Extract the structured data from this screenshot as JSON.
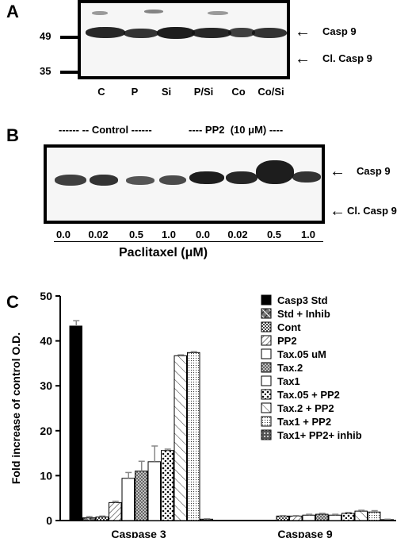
{
  "panels": {
    "a": {
      "label": "A",
      "markers": [
        "49",
        "35"
      ],
      "lanes": [
        "C",
        "P",
        "Si",
        "P/Si",
        "Co",
        "Co/Si"
      ],
      "arrows": [
        "Casp 9",
        "Cl. Casp 9"
      ]
    },
    "b": {
      "label": "B",
      "group_control": "------ -- Control ------",
      "group_pp2": "---- PP2  (10 μM) ----",
      "lanes": [
        "0.0",
        "0.02",
        "0.5",
        "1.0",
        "0.0",
        "0.02",
        "0.5",
        "1.0"
      ],
      "xlabel": "Paclitaxel (μM)",
      "arrows": [
        "Casp 9",
        "Cl. Casp 9"
      ]
    },
    "c": {
      "label": "C"
    }
  },
  "chart_data": {
    "type": "bar",
    "ylabel": "Fold increase of control O.D.",
    "ylim": [
      0,
      50
    ],
    "yticks": [
      0,
      10,
      20,
      30,
      40,
      50
    ],
    "groups": [
      "Caspase 3",
      "Caspase 9"
    ],
    "legend_position": "top-right",
    "series": [
      {
        "name": "Casp3 Std",
        "values": [
          43.3,
          null
        ],
        "error": [
          1.2,
          null
        ]
      },
      {
        "name": "Std + Inhib",
        "values": [
          0.6,
          null
        ],
        "error": [
          0.3,
          null
        ]
      },
      {
        "name": "Cont",
        "values": [
          0.8,
          1.0
        ],
        "error": [
          0.2,
          0.1
        ]
      },
      {
        "name": "PP2",
        "values": [
          4.0,
          1.0
        ],
        "error": [
          0.3,
          0.1
        ]
      },
      {
        "name": "Tax.05 uM",
        "values": [
          9.4,
          1.2
        ],
        "error": [
          1.3,
          0.2
        ]
      },
      {
        "name": "Tax.2",
        "values": [
          11.0,
          1.4
        ],
        "error": [
          2.2,
          0.2
        ]
      },
      {
        "name": "Tax1",
        "values": [
          13.1,
          1.2
        ],
        "error": [
          3.5,
          0.2
        ]
      },
      {
        "name": "Tax.05 + PP2",
        "values": [
          15.6,
          1.6
        ],
        "error": [
          0.3,
          0.2
        ]
      },
      {
        "name": "Tax.2 + PP2",
        "values": [
          36.7,
          2.1
        ],
        "error": [
          0.2,
          0.2
        ]
      },
      {
        "name": "Tax1 + PP2",
        "values": [
          37.4,
          1.9
        ],
        "error": [
          0.2,
          0.3
        ]
      },
      {
        "name": "Tax1+ PP2+ inhib",
        "values": [
          0.3,
          0.2
        ],
        "error": [
          0.1,
          0.1
        ]
      }
    ],
    "colors": {
      "black": "#000000",
      "white": "#ffffff",
      "gray": "#888888"
    }
  }
}
